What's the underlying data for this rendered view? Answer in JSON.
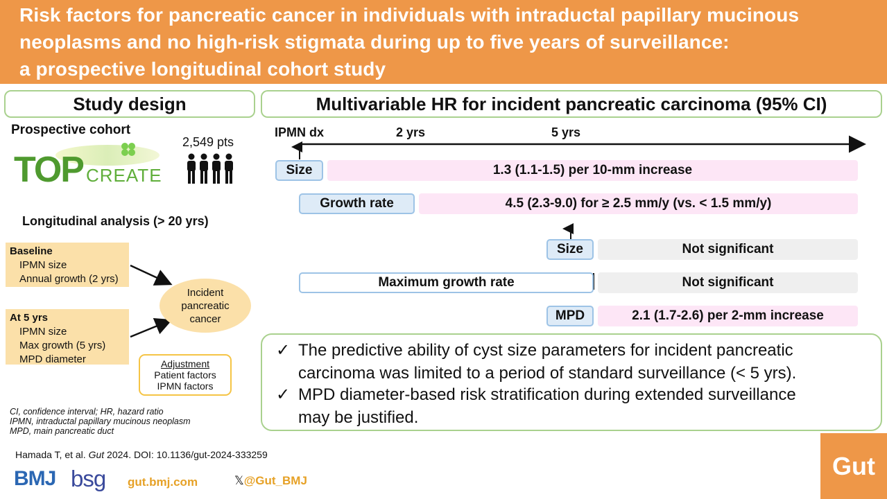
{
  "header": {
    "title_line1": "Risk factors for pancreatic cancer in individuals with intraductal papillary mucinous",
    "title_line2": "neoplasms and no high-risk stigmata during up to five years of surveillance:",
    "title_line3": "a prospective longitudinal cohort study",
    "background_color": "#ee9748"
  },
  "left_panel": {
    "heading": "Study design",
    "cohort_label": "Prospective cohort",
    "logo_main": "TOP",
    "logo_sub": "CREATE",
    "patients": "2,549 pts",
    "analysis_label": "Longitudinal analysis (> 20 yrs)",
    "baseline": {
      "title": "Baseline",
      "items": [
        "IPMN size",
        "Annual growth (2 yrs)"
      ]
    },
    "at5": {
      "title": "At 5 yrs",
      "items": [
        "IPMN size",
        "Max growth (5 yrs)",
        "MPD diameter"
      ]
    },
    "outcome": [
      "Incident",
      "pancreatic",
      "cancer"
    ],
    "adjustment": {
      "title": "Adjustment",
      "items": [
        "Patient factors",
        "IPMN factors"
      ]
    },
    "footnotes": [
      "CI, confidence interval; HR, hazard ratio",
      "IPMN, intraductal papillary mucinous neoplasm",
      "MPD, main pancreatic duct"
    ]
  },
  "right_panel": {
    "heading": "Multivariable HR for incident pancreatic carcinoma (95% CI)",
    "timeline": {
      "start": "IPMN dx",
      "t2": "2 yrs",
      "t5": "5 yrs"
    },
    "rows": [
      {
        "label": "Size",
        "result": "1.3 (1.1-1.5) per 10-mm increase"
      },
      {
        "label": "Growth rate",
        "result": "4.5 (2.3-9.0) for ≥ 2.5 mm/y (vs. < 1.5 mm/y)"
      },
      {
        "label": "Size",
        "result": "Not significant"
      },
      {
        "label": "Maximum growth rate",
        "result": "Not significant"
      },
      {
        "label": "MPD",
        "result": "2.1 (1.7-2.6) per 2-mm increase"
      }
    ],
    "conclusions": [
      {
        "line1": "The predictive ability of cyst size parameters for incident pancreatic",
        "line2": "carcinoma was limited to a period of standard surveillance (< 5 yrs)."
      },
      {
        "line1": "MPD diameter-based risk stratification during extended surveillance",
        "line2": "may be justified."
      }
    ],
    "check_glyph": "✓"
  },
  "footer": {
    "citation_author": "Hamada T, et al. ",
    "citation_journal": "Gut",
    "citation_rest": " 2024. DOI: 10.1136/gut-2024-333259",
    "bmj": "BMJ",
    "bsg": "bsg",
    "website": "gut.bmj.com",
    "x_glyph": "𝕏",
    "handle": "@Gut_BMJ",
    "journal_logo": "Gut"
  }
}
